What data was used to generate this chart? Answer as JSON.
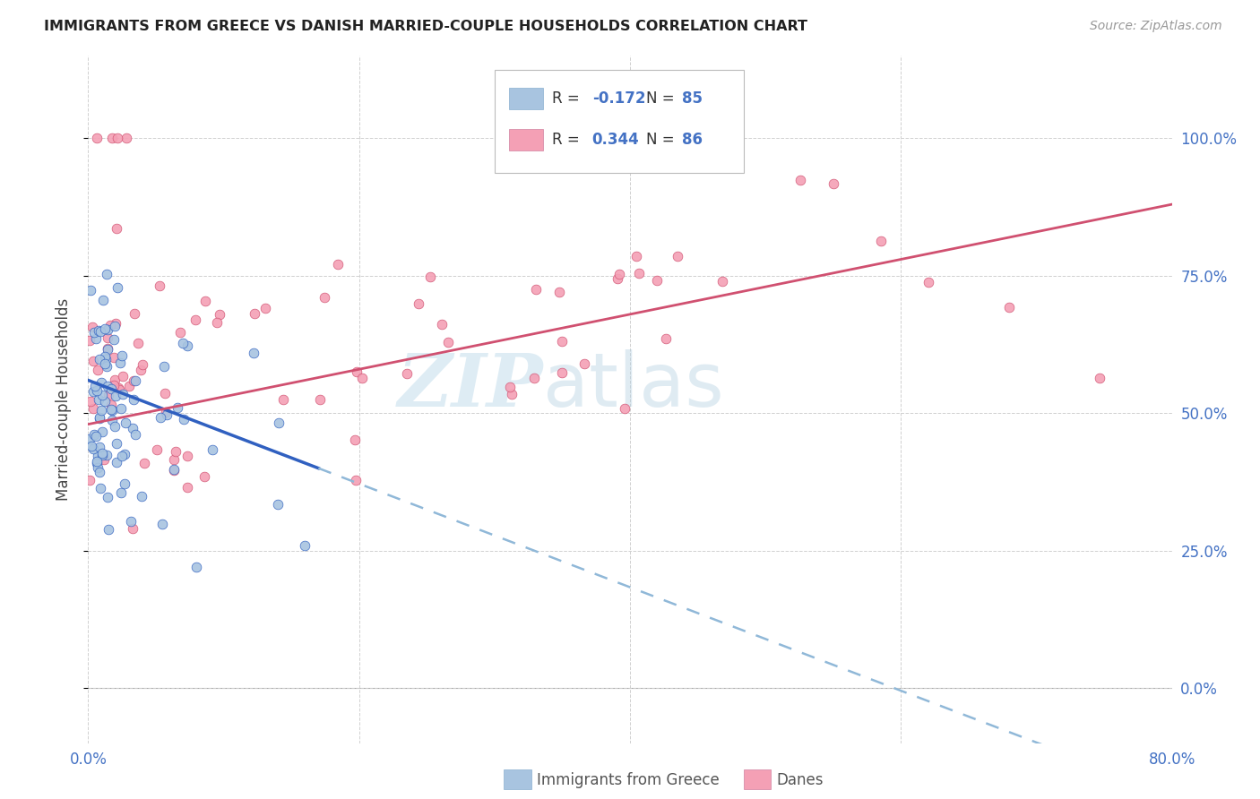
{
  "title": "IMMIGRANTS FROM GREECE VS DANISH MARRIED-COUPLE HOUSEHOLDS CORRELATION CHART",
  "source": "Source: ZipAtlas.com",
  "ylabel": "Married-couple Households",
  "blue_color": "#a8c4e0",
  "pink_color": "#f4a0b5",
  "blue_line_color": "#3060c0",
  "pink_line_color": "#d05070",
  "blue_dashed_color": "#90b8d8",
  "legend_label_blue": "Immigrants from Greece",
  "legend_label_pink": "Danes",
  "legend_r_blue": "-0.172",
  "legend_n_blue": "85",
  "legend_r_pink": "0.344",
  "legend_n_pink": "86",
  "tick_color": "#4472c4",
  "grid_color": "#cccccc",
  "title_color": "#222222",
  "source_color": "#999999"
}
